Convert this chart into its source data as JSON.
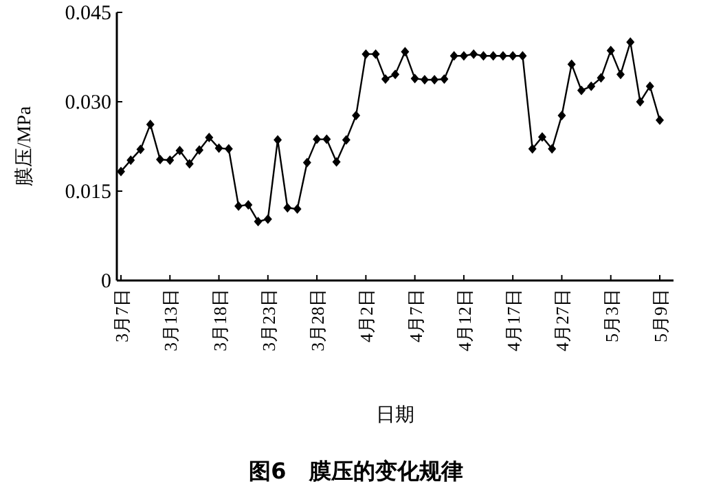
{
  "chart_data": {
    "type": "line",
    "title": "图6   膜压的变化规律",
    "xlabel": "日期",
    "ylabel": "膜压/MPa",
    "categories": [
      "3月7日",
      null,
      null,
      null,
      null,
      "3月13日",
      null,
      null,
      null,
      null,
      "3月18日",
      null,
      null,
      null,
      null,
      "3月23日",
      null,
      null,
      null,
      null,
      "3月28日",
      null,
      null,
      null,
      null,
      "4月2日",
      null,
      null,
      null,
      null,
      "4月7日",
      null,
      null,
      null,
      null,
      "4月12日",
      null,
      null,
      null,
      null,
      "4月17日",
      null,
      null,
      null,
      null,
      "4月27日",
      null,
      null,
      null,
      null,
      "5月3日",
      null,
      null,
      null,
      null,
      "5月9日"
    ],
    "series": [
      {
        "color": "#000000",
        "values": [
          0.0183,
          0.0202,
          0.022,
          0.0262,
          0.0203,
          0.0202,
          0.0218,
          0.0196,
          0.0219,
          0.024,
          0.0222,
          0.0221,
          0.0125,
          0.0127,
          0.0099,
          0.0103,
          0.0236,
          0.0122,
          0.012,
          0.0198,
          0.0237,
          0.0237,
          0.0199,
          0.0236,
          0.0277,
          0.038,
          0.038,
          0.0338,
          0.0346,
          0.0384,
          0.0339,
          0.0337,
          0.0337,
          0.0338,
          0.0377,
          0.0377,
          0.038,
          0.0377,
          0.0377,
          0.0377,
          0.0377,
          0.0377,
          0.0221,
          0.0241,
          0.0221,
          0.0277,
          0.0363,
          0.0319,
          0.0326,
          0.034,
          0.0386,
          0.0346,
          0.04,
          0.03,
          0.0326,
          0.0269
        ]
      }
    ],
    "ylim": [
      0,
      0.045
    ],
    "yticks": [
      0,
      {
        "value": 0.015,
        "label": "0.015"
      },
      {
        "value": 0.03,
        "label": "0.030"
      },
      {
        "value": 0.045,
        "label": "0.045"
      }
    ],
    "marker": "diamond",
    "line_style": "solid"
  }
}
